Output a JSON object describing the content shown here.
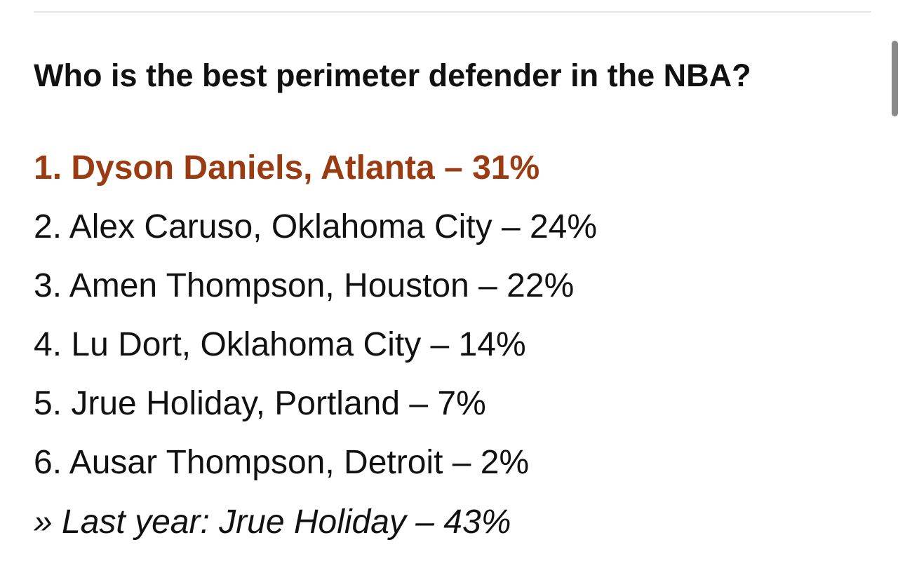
{
  "header": {
    "title": "Who is the best perimeter defender in the NBA?"
  },
  "list": {
    "items": [
      "1. Dyson Daniels, Atlanta – 31%",
      "2. Alex Caruso, Oklahoma City – 24%",
      "3. Amen Thompson, Houston – 22%",
      "4. Lu Dort, Oklahoma City – 14%",
      "5. Jrue Holiday, Portland – 7%",
      "6. Ausar Thompson, Detroit – 2%"
    ]
  },
  "note": "» Last year: Jrue Holiday – 43%"
}
